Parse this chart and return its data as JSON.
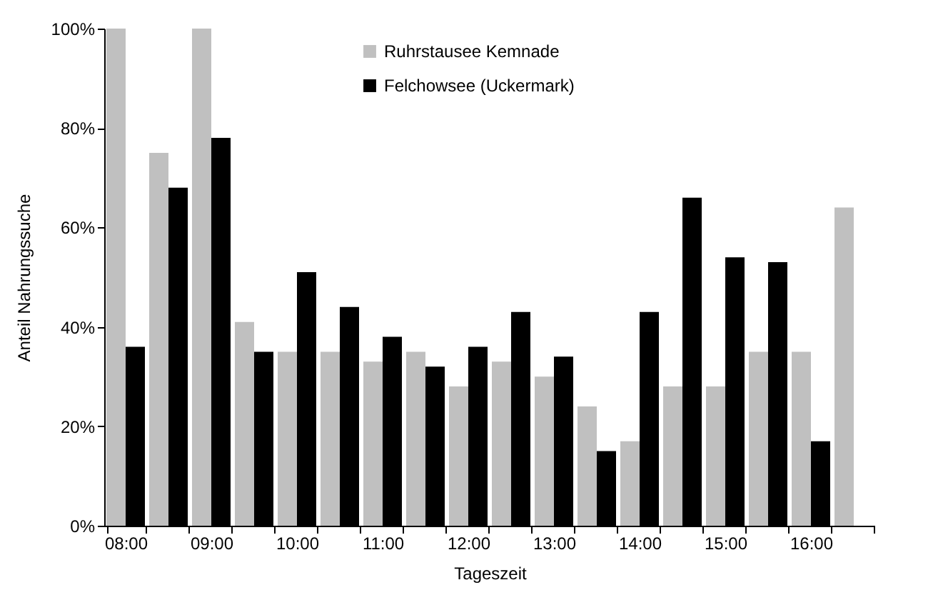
{
  "chart_data": {
    "type": "bar",
    "xlabel": "Tageszeit",
    "ylabel": "Anteil Nahrungssuche",
    "categories": [
      "08:00",
      null,
      "09:00",
      null,
      "10:00",
      null,
      "11:00",
      null,
      "12:00",
      null,
      "13:00",
      null,
      "14:00",
      null,
      "15:00",
      null,
      "16:00",
      null
    ],
    "series": [
      {
        "name": "Ruhrstausee Kemnade",
        "color": "#c0c0c0",
        "values": [
          100,
          75,
          100,
          41,
          35,
          35,
          33,
          35,
          28,
          33,
          30,
          24,
          17,
          28,
          28,
          35,
          35,
          64
        ]
      },
      {
        "name": "Felchowsee (Uckermark)",
        "color": "#000000",
        "values": [
          36,
          68,
          78,
          35,
          51,
          44,
          38,
          32,
          36,
          43,
          34,
          15,
          43,
          66,
          54,
          53,
          17,
          null
        ]
      }
    ],
    "ylim": [
      0,
      100
    ],
    "yticks": [
      {
        "value": 0,
        "label": "0%"
      },
      {
        "value": 20,
        "label": "20%"
      },
      {
        "value": 40,
        "label": "40%"
      },
      {
        "value": 60,
        "label": "60%"
      },
      {
        "value": 80,
        "label": "80%"
      },
      {
        "value": 100,
        "label": "100%"
      }
    ],
    "legend": "top right",
    "grid": false
  }
}
